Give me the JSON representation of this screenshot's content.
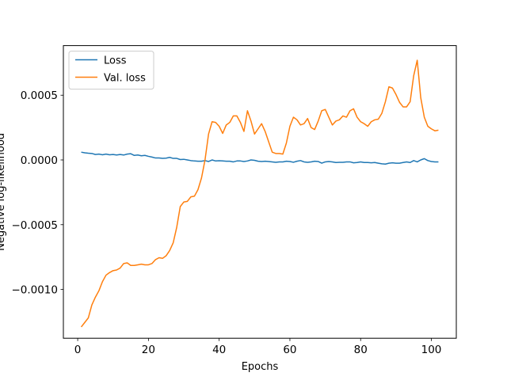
{
  "chart_data": {
    "type": "line",
    "title": "",
    "xlabel": "Epochs",
    "ylabel": "Negative log-likelihood",
    "xlim": [
      -4.05,
      107.05
    ],
    "ylim": [
      -0.001377,
      0.000883
    ],
    "xticks": [
      0,
      20,
      40,
      60,
      80,
      100
    ],
    "xtick_labels": [
      "0",
      "20",
      "40",
      "60",
      "80",
      "100"
    ],
    "yticks": [
      -0.001,
      -0.0005,
      0.0,
      0.0005
    ],
    "ytick_labels": [
      "−0.0010",
      "−0.0005",
      "0.0000",
      "0.0005"
    ],
    "grid": false,
    "legend_position": "upper-left",
    "series": [
      {
        "name": "Loss",
        "color": "#1f77b4",
        "x": [
          1,
          2,
          3,
          4,
          5,
          6,
          7,
          8,
          9,
          10,
          11,
          12,
          13,
          14,
          15,
          16,
          17,
          18,
          19,
          20,
          21,
          22,
          23,
          24,
          25,
          26,
          27,
          28,
          29,
          30,
          31,
          32,
          33,
          34,
          35,
          36,
          37,
          38,
          39,
          40,
          41,
          42,
          43,
          44,
          45,
          46,
          47,
          48,
          49,
          50,
          51,
          52,
          53,
          54,
          55,
          56,
          57,
          58,
          59,
          60,
          61,
          62,
          63,
          64,
          65,
          66,
          67,
          68,
          69,
          70,
          71,
          72,
          73,
          74,
          75,
          76,
          77,
          78,
          79,
          80,
          81,
          82,
          83,
          84,
          85,
          86,
          87,
          88,
          89,
          90,
          91,
          92,
          93,
          94,
          95,
          96,
          97,
          98,
          99,
          100,
          101,
          102
        ],
        "y": [
          6e-05,
          5.5e-05,
          5.2e-05,
          5e-05,
          4.2e-05,
          4.5e-05,
          4e-05,
          4.5e-05,
          4e-05,
          4.2e-05,
          3.8e-05,
          4.2e-05,
          3.8e-05,
          4.5e-05,
          4.8e-05,
          3.5e-05,
          3.8e-05,
          3.2e-05,
          3.5e-05,
          2.8e-05,
          2.2e-05,
          1.5e-05,
          1.5e-05,
          1.2e-05,
          1.4e-05,
          2e-05,
          1.2e-05,
          1.2e-05,
          3e-06,
          5e-06,
          0.0,
          -5e-06,
          -8e-06,
          -1e-05,
          -1e-05,
          -5e-06,
          -1.2e-05,
          0.0,
          -8e-06,
          -6e-06,
          -8e-06,
          -1e-05,
          -1e-05,
          -1.5e-05,
          -8e-06,
          -8e-06,
          -1.2e-05,
          -8e-06,
          0.0,
          -3e-06,
          -1e-05,
          -1.2e-05,
          -1e-05,
          -1.2e-05,
          -1.5e-05,
          -1.8e-05,
          -1.5e-05,
          -1.5e-05,
          -1e-05,
          -1.2e-05,
          -1.8e-05,
          -1e-05,
          -5e-06,
          -1.5e-05,
          -1.8e-05,
          -1.5e-05,
          -1e-05,
          -1.2e-05,
          -2.5e-05,
          -1.5e-05,
          -1.2e-05,
          -1.5e-05,
          -2e-05,
          -1.8e-05,
          -1.8e-05,
          -1.5e-05,
          -1.5e-05,
          -2.2e-05,
          -2e-05,
          -1.5e-05,
          -2e-05,
          -2e-05,
          -2.2e-05,
          -2e-05,
          -2.5e-05,
          -3e-05,
          -3.2e-05,
          -2.5e-05,
          -2.2e-05,
          -2.5e-05,
          -2.5e-05,
          -2e-05,
          -1.5e-05,
          -2e-05,
          -5e-06,
          -1.5e-05,
          0.0,
          1e-05,
          -5e-06,
          -1.2e-05,
          -1.5e-05,
          -1.5e-05
        ]
      },
      {
        "name": "Val. loss",
        "color": "#ff7f0e",
        "x": [
          1,
          2,
          3,
          4,
          5,
          6,
          7,
          8,
          9,
          10,
          11,
          12,
          13,
          14,
          15,
          16,
          17,
          18,
          19,
          20,
          21,
          22,
          23,
          24,
          25,
          26,
          27,
          28,
          29,
          30,
          31,
          32,
          33,
          34,
          35,
          36,
          37,
          38,
          39,
          40,
          41,
          42,
          43,
          44,
          45,
          46,
          47,
          48,
          49,
          50,
          51,
          52,
          53,
          54,
          55,
          56,
          57,
          58,
          59,
          60,
          61,
          62,
          63,
          64,
          65,
          66,
          67,
          68,
          69,
          70,
          71,
          72,
          73,
          74,
          75,
          76,
          77,
          78,
          79,
          80,
          81,
          82,
          83,
          84,
          85,
          86,
          87,
          88,
          89,
          90,
          91,
          92,
          93,
          94,
          95,
          96,
          97,
          98,
          99,
          100,
          101,
          102
        ],
        "y": [
          -0.00129,
          -0.001255,
          -0.00122,
          -0.00112,
          -0.00106,
          -0.00101,
          -0.00094,
          -0.00089,
          -0.00087,
          -0.000855,
          -0.00085,
          -0.000835,
          -0.0008,
          -0.000795,
          -0.000815,
          -0.000815,
          -0.00081,
          -0.000805,
          -0.00081,
          -0.00081,
          -0.0008,
          -0.00077,
          -0.000755,
          -0.00076,
          -0.00074,
          -0.0007,
          -0.00064,
          -0.00052,
          -0.00036,
          -0.000325,
          -0.00032,
          -0.000285,
          -0.00028,
          -0.00023,
          -0.00014,
          0.0,
          0.0002,
          0.000295,
          0.00029,
          0.00026,
          0.000205,
          0.00027,
          0.00029,
          0.00034,
          0.00034,
          0.00029,
          0.00022,
          0.00038,
          0.0003,
          0.0002,
          0.00024,
          0.00028,
          0.00022,
          0.00014,
          6e-05,
          5e-05,
          5e-05,
          4.5e-05,
          0.00013,
          0.00026,
          0.00033,
          0.00031,
          0.00027,
          0.00028,
          0.00032,
          0.00025,
          0.000235,
          0.0003,
          0.00038,
          0.00039,
          0.00033,
          0.00027,
          0.0003,
          0.00031,
          0.00034,
          0.00033,
          0.00038,
          0.000395,
          0.00033,
          0.000295,
          0.00028,
          0.00026,
          0.000295,
          0.00031,
          0.000315,
          0.00036,
          0.00045,
          0.000565,
          0.000555,
          0.000505,
          0.000445,
          0.00041,
          0.00041,
          0.00045,
          0.00065,
          0.00077,
          0.00048,
          0.00033,
          0.00026,
          0.00024,
          0.000225,
          0.00023
        ]
      }
    ]
  }
}
